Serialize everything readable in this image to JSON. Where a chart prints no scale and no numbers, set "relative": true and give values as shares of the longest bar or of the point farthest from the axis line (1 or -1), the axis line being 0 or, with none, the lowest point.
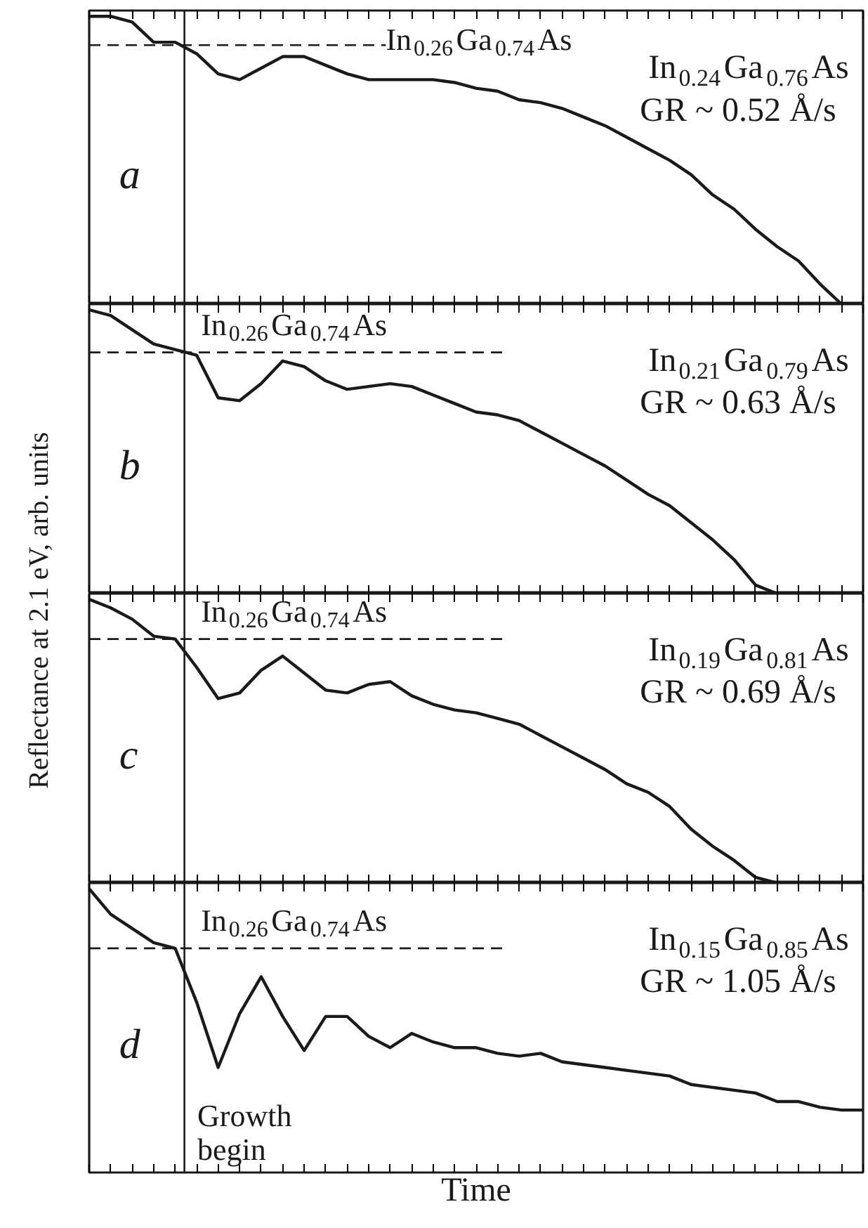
{
  "chart_data": [
    {
      "type": "line",
      "relative": true,
      "grid": false,
      "ylabel": "Reflectance at 2.1 eV, arb. units",
      "categories": [
        null,
        null,
        null,
        null,
        null,
        null,
        null,
        null,
        null,
        null,
        null,
        null,
        null,
        null,
        null,
        null,
        null,
        null,
        null,
        null,
        null,
        null,
        null,
        null,
        null,
        null,
        null,
        null,
        null,
        null,
        null,
        null,
        null,
        null,
        null,
        null,
        null
      ],
      "series": [
        {
          "color": "#1a1a1a",
          "values": [
            1.0,
            1.0,
            0.98,
            0.91,
            0.91,
            0.87,
            0.8,
            0.78,
            0.82,
            0.86,
            0.86,
            0.83,
            0.8,
            0.78,
            0.78,
            0.78,
            0.78,
            0.77,
            0.75,
            0.74,
            0.71,
            0.7,
            0.68,
            0.65,
            0.62,
            0.58,
            0.54,
            0.5,
            0.45,
            0.38,
            0.33,
            0.26,
            0.2,
            0.15,
            0.07,
            0.0,
            0.0
          ]
        }
      ],
      "ref_lines": [
        {
          "axis": "y",
          "value": 0.9,
          "label": "In$_{0.26}$Ga$_{0.74}$As",
          "line_style": "dashed"
        }
      ],
      "annotations": [
        "a",
        "In$_{0.24}$Ga$_{0.76}$As",
        "GR ~ 0.52 Å/s"
      ]
    },
    {
      "type": "line",
      "relative": true,
      "grid": false,
      "categories": [
        null,
        null,
        null,
        null,
        null,
        null,
        null,
        null,
        null,
        null,
        null,
        null,
        null,
        null,
        null,
        null,
        null,
        null,
        null,
        null,
        null,
        null,
        null,
        null,
        null,
        null,
        null,
        null,
        null,
        null,
        null,
        null,
        null,
        null,
        null,
        null,
        null
      ],
      "series": [
        {
          "color": "#1a1a1a",
          "values": [
            1.0,
            0.98,
            0.93,
            0.88,
            0.86,
            0.84,
            0.69,
            0.68,
            0.74,
            0.82,
            0.8,
            0.75,
            0.72,
            0.73,
            0.74,
            0.73,
            0.7,
            0.67,
            0.64,
            0.63,
            0.61,
            0.57,
            0.53,
            0.49,
            0.45,
            0.4,
            0.35,
            0.31,
            0.25,
            0.19,
            0.12,
            0.03,
            0.0,
            0.0,
            0.0,
            0.0,
            0.0
          ]
        }
      ],
      "ref_lines": [
        {
          "axis": "y",
          "value": 0.85,
          "label": "In$_{0.26}$Ga$_{0.74}$As",
          "line_style": "dashed"
        }
      ],
      "annotations": [
        "b",
        "In$_{0.21}$Ga$_{0.79}$As",
        "GR ~ 0.63 Å/s"
      ]
    },
    {
      "type": "line",
      "relative": true,
      "grid": false,
      "categories": [
        null,
        null,
        null,
        null,
        null,
        null,
        null,
        null,
        null,
        null,
        null,
        null,
        null,
        null,
        null,
        null,
        null,
        null,
        null,
        null,
        null,
        null,
        null,
        null,
        null,
        null,
        null,
        null,
        null,
        null,
        null,
        null,
        null,
        null,
        null,
        null,
        null
      ],
      "series": [
        {
          "color": "#1a1a1a",
          "values": [
            1.0,
            0.97,
            0.93,
            0.87,
            0.86,
            0.76,
            0.65,
            0.67,
            0.75,
            0.8,
            0.74,
            0.68,
            0.67,
            0.7,
            0.71,
            0.66,
            0.63,
            0.61,
            0.6,
            0.58,
            0.56,
            0.52,
            0.48,
            0.44,
            0.4,
            0.35,
            0.32,
            0.27,
            0.19,
            0.13,
            0.08,
            0.02,
            0.0,
            null,
            null,
            null,
            null
          ]
        }
      ],
      "ref_lines": [
        {
          "axis": "y",
          "value": 0.86,
          "label": "In$_{0.26}$Ga$_{0.74}$As",
          "line_style": "dashed"
        }
      ],
      "annotations": [
        "c",
        "In$_{0.19}$Ga$_{0.81}$As",
        "GR ~ 0.69 Å/s"
      ]
    },
    {
      "type": "line",
      "relative": true,
      "grid": false,
      "xlabel": "Time",
      "categories": [
        null,
        null,
        null,
        null,
        null,
        null,
        null,
        null,
        null,
        null,
        null,
        null,
        null,
        null,
        null,
        null,
        null,
        null,
        null,
        null,
        null,
        null,
        null,
        null,
        null,
        null,
        null,
        null,
        null,
        null,
        null,
        null,
        null,
        null,
        null,
        null,
        null
      ],
      "series": [
        {
          "color": "#1a1a1a",
          "values": [
            1.0,
            0.91,
            0.86,
            0.81,
            0.79,
            0.6,
            0.37,
            0.56,
            0.69,
            0.55,
            0.43,
            0.55,
            0.55,
            0.48,
            0.44,
            0.49,
            0.46,
            0.44,
            0.44,
            0.42,
            0.41,
            0.42,
            0.39,
            0.38,
            0.37,
            0.36,
            0.35,
            0.34,
            0.31,
            0.3,
            0.29,
            0.28,
            0.25,
            0.25,
            0.23,
            0.22,
            0.22
          ]
        }
      ],
      "ref_lines": [
        {
          "axis": "y",
          "value": 0.79,
          "label": "In$_{0.26}$Ga$_{0.74}$As",
          "line_style": "dashed"
        }
      ],
      "annotations": [
        "d",
        "In$_{0.15}$Ga$_{0.85}$As",
        "GR ~ 1.05 Å/s",
        "Growth begin"
      ]
    }
  ]
}
